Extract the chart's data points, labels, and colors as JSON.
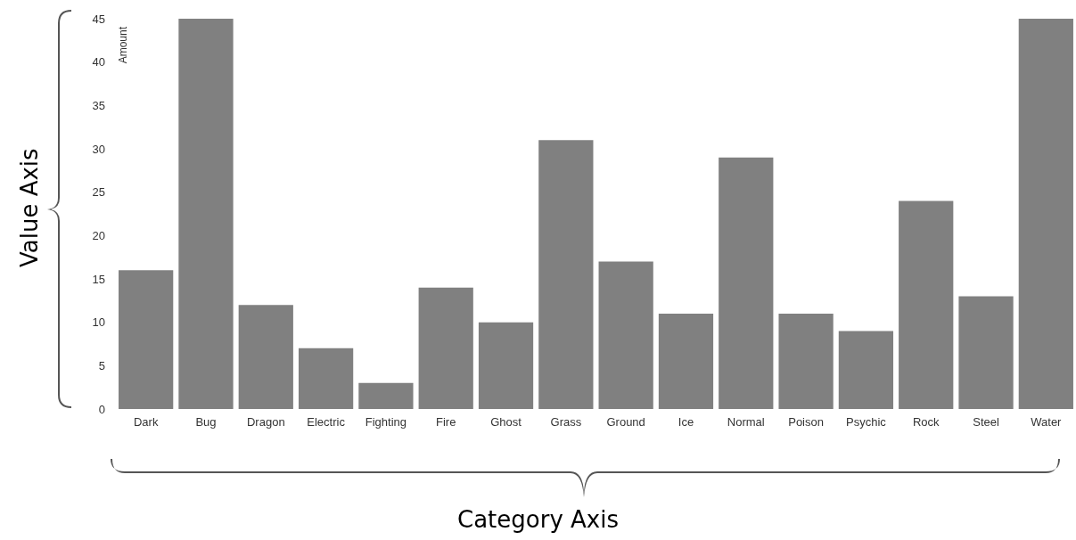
{
  "chart_data": {
    "type": "bar",
    "ylabel": "Amount",
    "categories": [
      "Dark",
      "Bug",
      "Dragon",
      "Electric",
      "Fighting",
      "Fire",
      "Ghost",
      "Grass",
      "Ground",
      "Ice",
      "Normal",
      "Poison",
      "Psychic",
      "Rock",
      "Steel",
      "Water"
    ],
    "values": [
      16,
      45,
      12,
      7,
      3,
      14,
      10,
      31,
      17,
      11,
      29,
      11,
      9,
      24,
      13,
      45
    ],
    "color": "#808080",
    "ylim": [
      0,
      45
    ],
    "yticks": [
      0,
      5,
      10,
      15,
      20,
      25,
      30,
      35,
      40,
      45
    ],
    "grid": false,
    "annotations": [
      "Value Axis",
      "Category Axis"
    ]
  }
}
